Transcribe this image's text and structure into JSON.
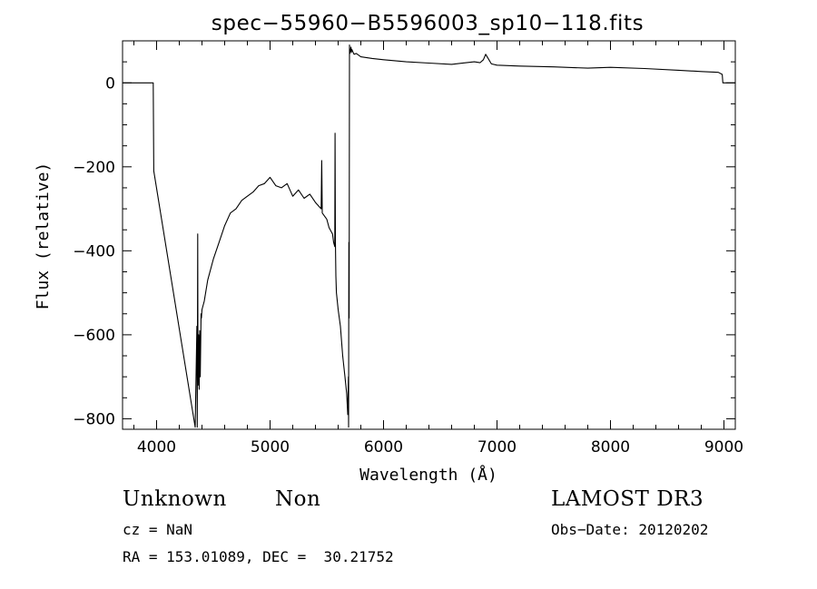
{
  "chart_data": {
    "type": "line",
    "title": "spec−55960−B5596003_sp10−118.fits",
    "xlabel": "Wavelength (Å)",
    "ylabel": "Flux (relative)",
    "xlim": [
      3700,
      9100
    ],
    "ylim": [
      -825,
      100
    ],
    "xticks": [
      4000,
      5000,
      6000,
      7000,
      8000,
      9000
    ],
    "yticks": [
      0,
      -200,
      -400,
      -600,
      -800
    ],
    "ytick_labels": [
      "0",
      "−200",
      "−400",
      "−600",
      "−800"
    ],
    "grid": false,
    "series": [
      {
        "x": [
          3700,
          3970,
          3975,
          4340,
          4355,
          4358,
          4362,
          4365,
          4370,
          4375,
          4380,
          4385,
          4392,
          4395,
          4400,
          4420,
          4450,
          4500,
          4550,
          4600,
          4650,
          4700,
          4750,
          4800,
          4850,
          4900,
          4950,
          5000,
          5050,
          5100,
          5150,
          5200,
          5250,
          5300,
          5350,
          5400,
          5450,
          5455,
          5460,
          5500,
          5520,
          5550,
          5560,
          5570,
          5573,
          5576,
          5580,
          5585,
          5600,
          5620,
          5640,
          5660,
          5675,
          5685,
          5690,
          5692,
          5694,
          5697,
          5700,
          5703,
          5706,
          5710,
          5713,
          5716,
          5720,
          5740,
          5760,
          5800,
          5900,
          6000,
          6200,
          6400,
          6600,
          6800,
          6850,
          6880,
          6900,
          6950,
          7000,
          7200,
          7500,
          7800,
          8000,
          8300,
          8600,
          8800,
          8950,
          8985,
          8990,
          9010,
          9100
        ],
        "y": [
          0,
          0,
          -210,
          -820,
          -580,
          -820,
          -360,
          -720,
          -600,
          -730,
          -590,
          -700,
          -550,
          -560,
          -540,
          -520,
          -470,
          -420,
          -380,
          -340,
          -310,
          -300,
          -280,
          -270,
          -260,
          -245,
          -240,
          -225,
          -245,
          -250,
          -240,
          -270,
          -255,
          -275,
          -265,
          -285,
          -300,
          -185,
          -310,
          -325,
          -345,
          -360,
          -380,
          -390,
          -120,
          -380,
          -460,
          -500,
          -540,
          -580,
          -650,
          -700,
          -740,
          -790,
          -700,
          -820,
          -380,
          -560,
          90,
          70,
          80,
          75,
          85,
          72,
          80,
          68,
          70,
          62,
          58,
          55,
          50,
          47,
          44,
          50,
          48,
          55,
          68,
          45,
          42,
          40,
          38,
          35,
          37,
          34,
          30,
          27,
          25,
          20,
          0,
          0,
          0
        ]
      }
    ]
  },
  "info": {
    "object_class": "Unknown",
    "object_subclass": "Non",
    "survey": "LAMOST DR3",
    "redshift": "cz = NaN",
    "obs_date": "Obs−Date: 20120202",
    "coordinates": "RA = 153.01089, DEC =  30.21752"
  }
}
